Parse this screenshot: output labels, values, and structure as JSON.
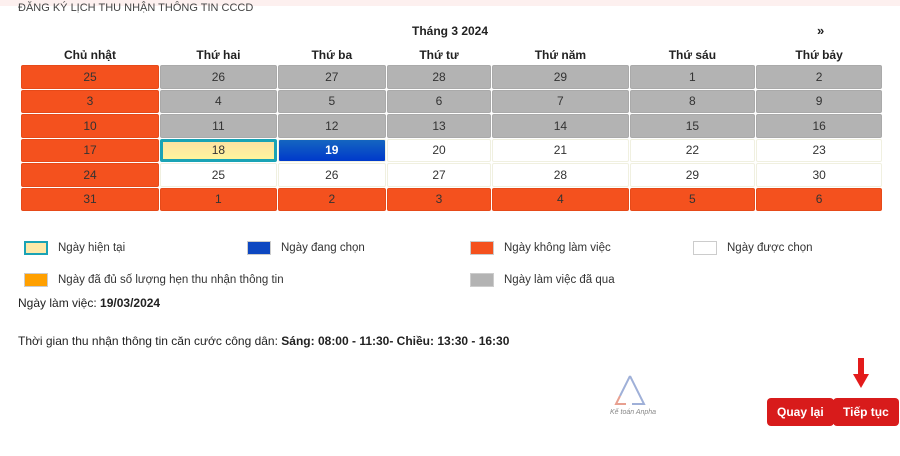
{
  "title": "ĐĂNG KÝ LỊCH THU NHẬN THÔNG TIN CCCD",
  "calendar": {
    "month_label": "Tháng 3 2024",
    "next_label": "»",
    "weekdays": [
      "Chủ nhật",
      "Thứ hai",
      "Thứ ba",
      "Thứ tư",
      "Thứ năm",
      "Thứ sáu",
      "Thứ bảy"
    ],
    "weeks": [
      [
        [
          "25",
          "off"
        ],
        [
          "26",
          "past"
        ],
        [
          "27",
          "past"
        ],
        [
          "28",
          "past"
        ],
        [
          "29",
          "past"
        ],
        [
          "1",
          "past"
        ],
        [
          "2",
          "past"
        ]
      ],
      [
        [
          "3",
          "off"
        ],
        [
          "4",
          "past"
        ],
        [
          "5",
          "past"
        ],
        [
          "6",
          "past"
        ],
        [
          "7",
          "past"
        ],
        [
          "8",
          "past"
        ],
        [
          "9",
          "past"
        ]
      ],
      [
        [
          "10",
          "off"
        ],
        [
          "11",
          "past"
        ],
        [
          "12",
          "past"
        ],
        [
          "13",
          "past"
        ],
        [
          "14",
          "past"
        ],
        [
          "15",
          "past"
        ],
        [
          "16",
          "past"
        ]
      ],
      [
        [
          "17",
          "off"
        ],
        [
          "18",
          "today"
        ],
        [
          "19",
          "sel"
        ],
        [
          "20",
          ""
        ],
        [
          "21",
          ""
        ],
        [
          "22",
          ""
        ],
        [
          "23",
          ""
        ]
      ],
      [
        [
          "24",
          "off"
        ],
        [
          "25",
          ""
        ],
        [
          "26",
          ""
        ],
        [
          "27",
          ""
        ],
        [
          "28",
          ""
        ],
        [
          "29",
          ""
        ],
        [
          "30",
          ""
        ]
      ],
      [
        [
          "31",
          "off"
        ],
        [
          "1",
          "off"
        ],
        [
          "2",
          "off"
        ],
        [
          "3",
          "off"
        ],
        [
          "4",
          "off"
        ],
        [
          "5",
          "off"
        ],
        [
          "6",
          "off"
        ]
      ]
    ]
  },
  "legend": [
    {
      "label": "Ngày hiện tại",
      "color": "#fde9a8"
    },
    {
      "label": "Ngày đang chọn",
      "color": "#0d47c1"
    },
    {
      "label": "Ngày không làm việc",
      "color": "#f4511e"
    },
    {
      "label": "Ngày được chọn",
      "color": "#ffffff"
    },
    {
      "label": "Ngày đã đủ số lượng hẹn thu nhận thông tin",
      "color": "#ffa000"
    },
    {
      "label": "Ngày làm việc đã qua",
      "color": "#b3b3b3"
    }
  ],
  "workday": {
    "label": "Ngày làm việc:",
    "value": "19/03/2024"
  },
  "hours": {
    "label": "Thời gian thu nhận thông tin căn cước công dân:",
    "value": "Sáng: 08:00 - 11:30- Chiều: 13:30 - 16:30"
  },
  "buttons": {
    "back": "Quay lại",
    "next": "Tiếp tục"
  },
  "colors": {
    "accent": "#d81b1b"
  }
}
